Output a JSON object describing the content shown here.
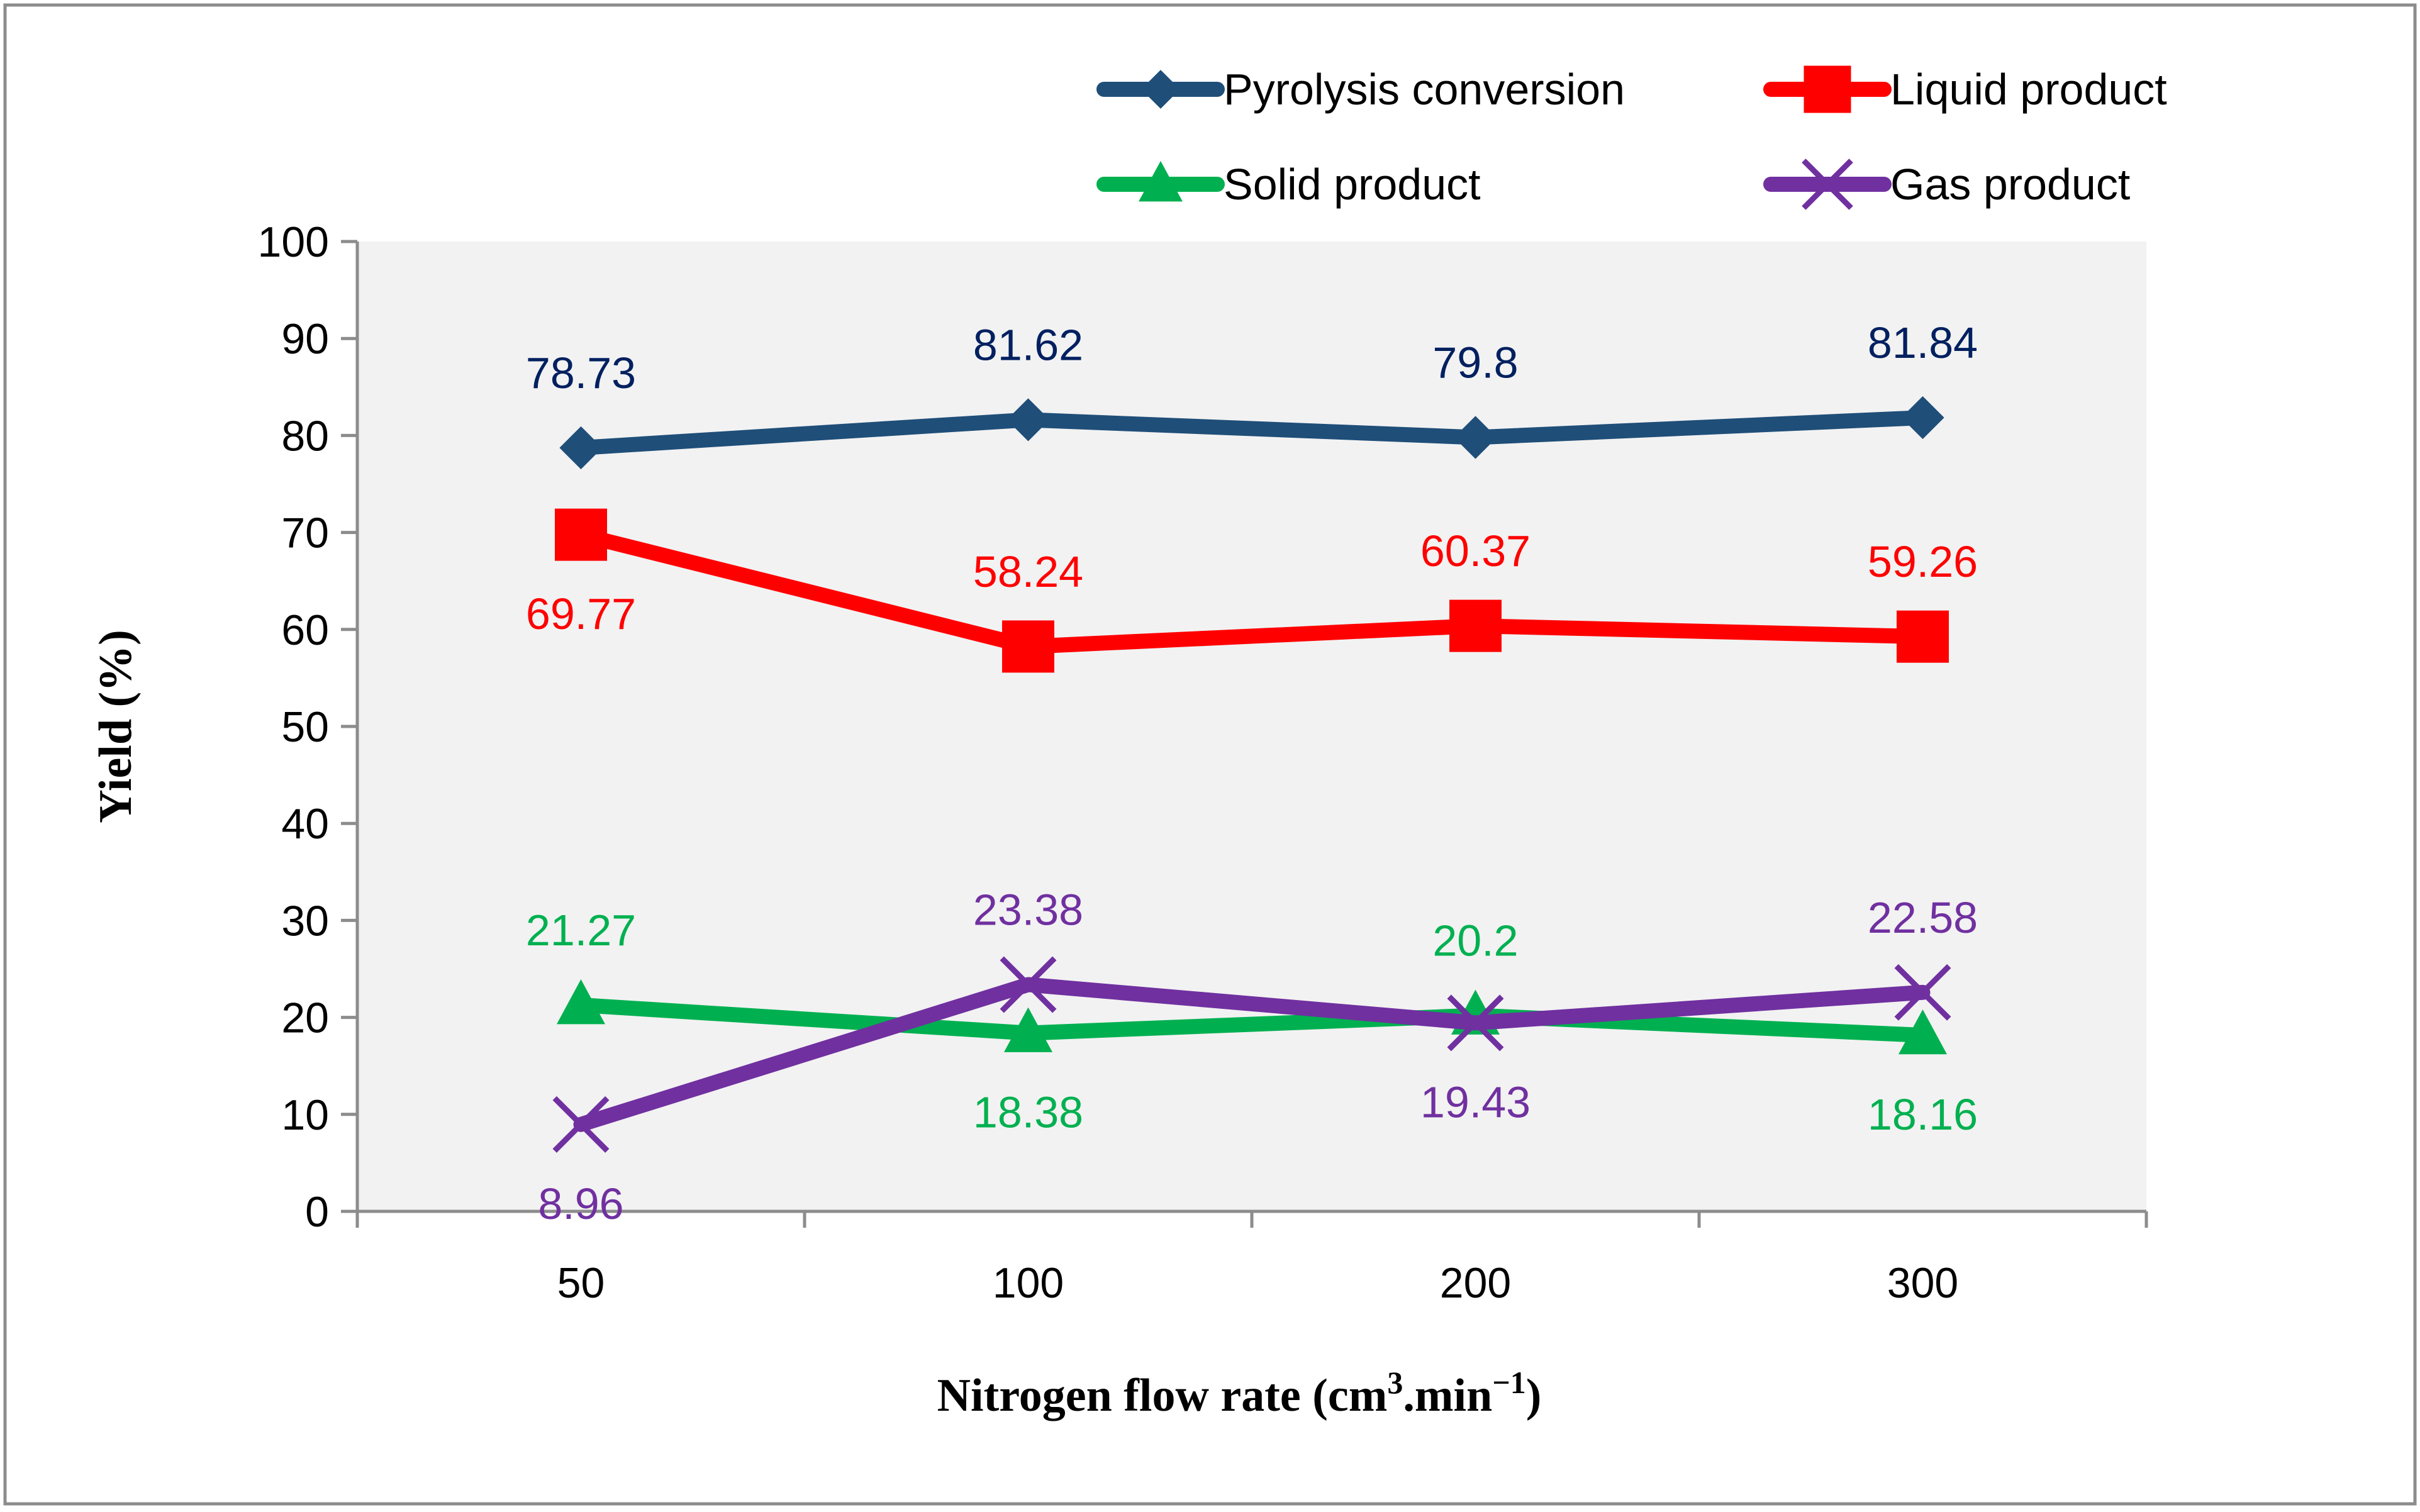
{
  "chart_data": {
    "type": "line",
    "title": "",
    "xlabel": "Nitrogen flow rate (cm",
    "xlabel_sup": "3",
    "xlabel_mid": ".min",
    "xlabel_sup2": "−1",
    "xlabel_end": ")",
    "ylabel": "Yield (%)",
    "categories": [
      "50",
      "100",
      "200",
      "300"
    ],
    "ylim": [
      0,
      100
    ],
    "yticks": [
      "0",
      "10",
      "20",
      "30",
      "40",
      "50",
      "60",
      "70",
      "80",
      "90",
      "100"
    ],
    "grid": false,
    "plot_background": "#f2f2f2",
    "legend_position": "top",
    "series": [
      {
        "name": "Pyrolysis conversion",
        "values": [
          78.73,
          81.62,
          79.8,
          81.84
        ],
        "labels": [
          "78.73",
          "81.62",
          "79.8",
          "81.84"
        ],
        "label_side": [
          "above",
          "above",
          "above",
          "above"
        ],
        "color": "#1f4e79",
        "label_color": "#002060",
        "marker": "diamond"
      },
      {
        "name": "Liquid product",
        "values": [
          69.77,
          58.24,
          60.37,
          59.26
        ],
        "labels": [
          "69.77",
          "58.24",
          "60.37",
          "59.26"
        ],
        "label_side": [
          "below",
          "above",
          "above",
          "above"
        ],
        "color": "#ff0000",
        "label_color": "#ff0000",
        "marker": "square"
      },
      {
        "name": "Solid product",
        "values": [
          21.27,
          18.38,
          20.2,
          18.16
        ],
        "labels": [
          "21.27",
          "18.38",
          "20.2",
          "18.16"
        ],
        "label_side": [
          "above",
          "below",
          "above",
          "below"
        ],
        "color": "#00b050",
        "label_color": "#00b050",
        "marker": "triangle"
      },
      {
        "name": "Gas product",
        "values": [
          8.96,
          23.38,
          19.43,
          22.58
        ],
        "labels": [
          "8.96",
          "23.38",
          "19.43",
          "22.58"
        ],
        "label_side": [
          "below",
          "above",
          "below",
          "above"
        ],
        "color": "#7030a0",
        "label_color": "#7030a0",
        "marker": "x"
      }
    ]
  }
}
